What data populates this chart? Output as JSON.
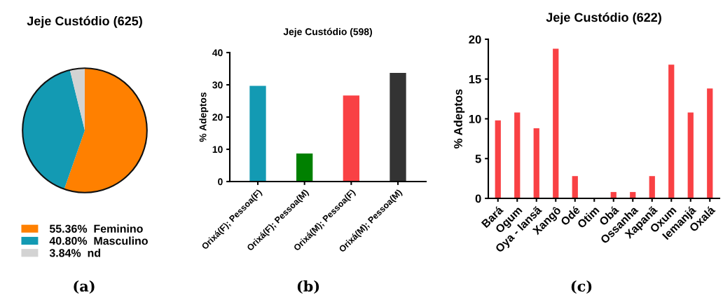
{
  "chart_data": [
    {
      "type": "pie",
      "title": "Jeje Custódio (625)",
      "categories": [
        "Feminino",
        "Masculino",
        "nd"
      ],
      "values": [
        55.36,
        40.8,
        3.84
      ],
      "value_labels": [
        "55.36%",
        "40.80%",
        "3.84%"
      ],
      "colors": [
        "#ff8000",
        "#139ab3",
        "#d3d3d3"
      ],
      "legend": "bottom",
      "annotations": [
        "(a)"
      ]
    },
    {
      "type": "bar",
      "title": "Jeje Custódio (598)",
      "ylabel": "% Adeptos",
      "categories": [
        "Orixá(F); Pessoa(F)",
        "Orixá(F); Pessoa(M)",
        "Orixá(M); Pessoa(F)",
        "Orixá(M); Pessoa(M)"
      ],
      "values": [
        29.7,
        8.7,
        26.7,
        33.7
      ],
      "colors": [
        "#139ab3",
        "#008000",
        "#f94144",
        "#333333"
      ],
      "ylim": [
        0,
        40
      ],
      "yticks": [
        0,
        10,
        20,
        30,
        40
      ],
      "grid": false,
      "legend": false,
      "annotations": [
        "(b)"
      ]
    },
    {
      "type": "bar",
      "title": "Jeje Custódio (622)",
      "ylabel": "% Adeptos",
      "categories": [
        "Bará",
        "Ogum",
        "Oya - Iansã",
        "Xangô",
        "Odé",
        "Otim",
        "Obá",
        "Ossanha",
        "Xapanã",
        "Oxum",
        "Iemanjá",
        "Oxalá"
      ],
      "values": [
        9.8,
        10.8,
        8.8,
        18.8,
        2.8,
        0,
        0.8,
        0.8,
        2.8,
        16.8,
        10.8,
        13.8
      ],
      "color": "#f94144",
      "ylim": [
        0,
        20
      ],
      "yticks": [
        0,
        5,
        10,
        15,
        20
      ],
      "grid": false,
      "legend": false,
      "annotations": [
        "(c)"
      ]
    }
  ]
}
